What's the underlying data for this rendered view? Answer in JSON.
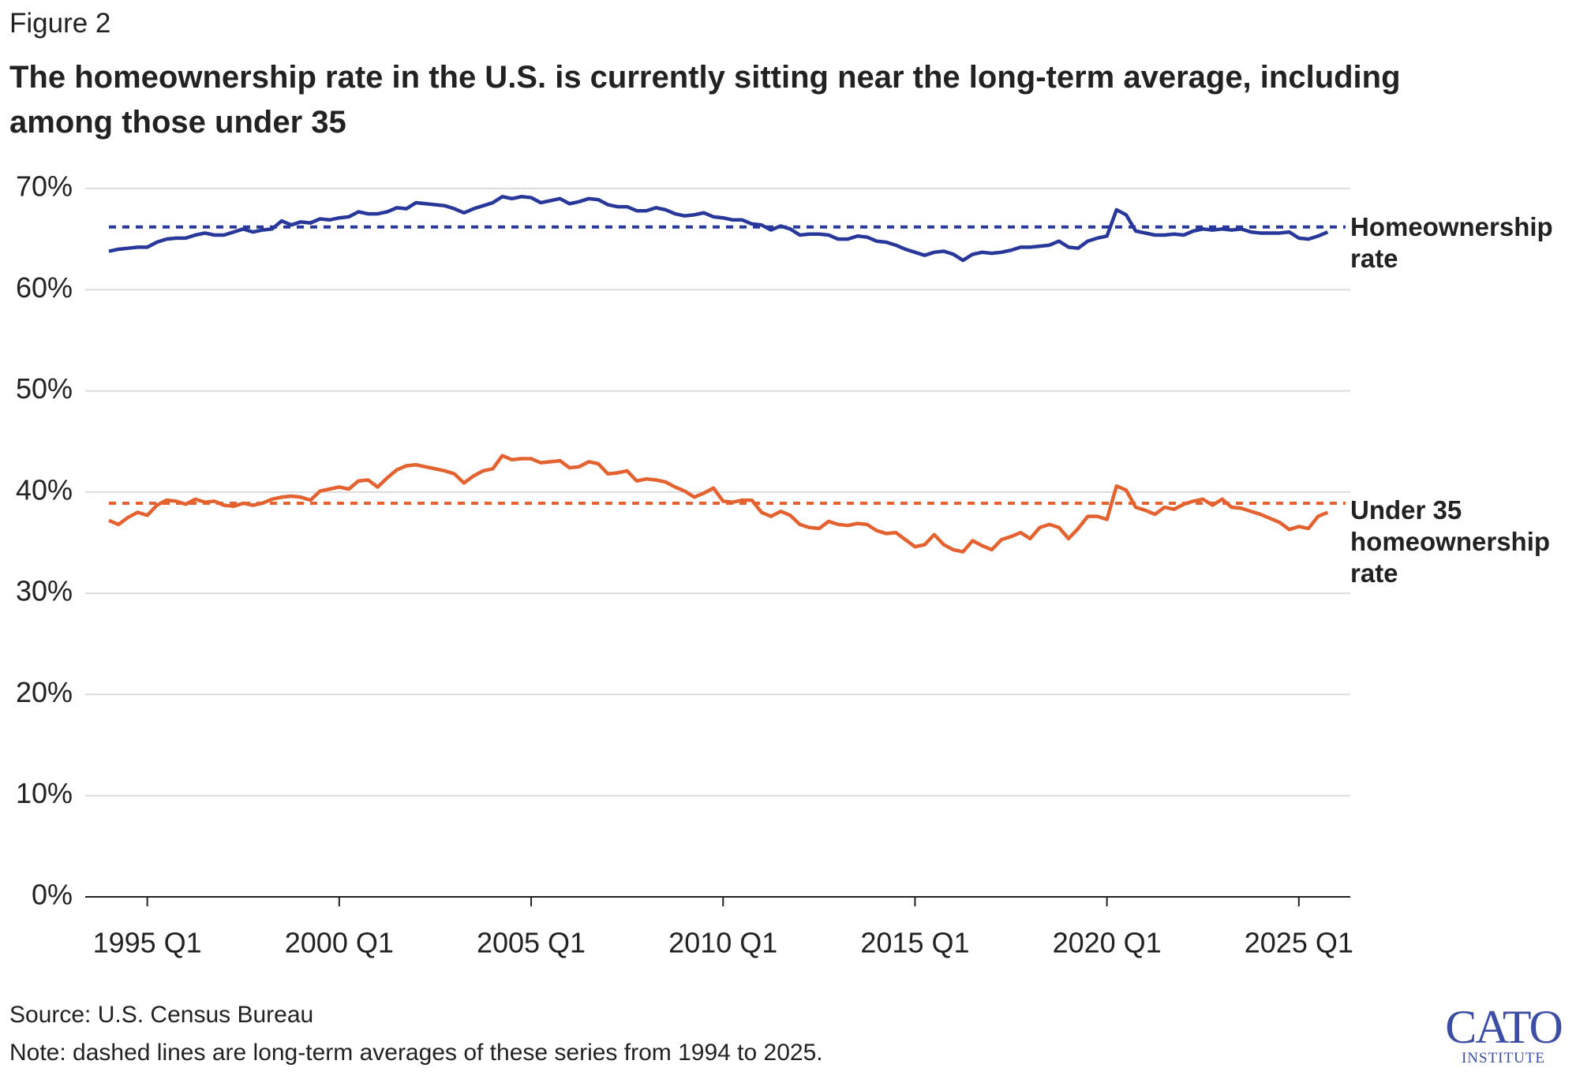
{
  "figure_label": "Figure 2",
  "chart_data": {
    "type": "line",
    "title": "The homeownership rate in the U.S. is currently sitting near the long-term average, including among those under 35",
    "categories": [
      null,
      null,
      null,
      null,
      "1995 Q1",
      null,
      null,
      null,
      null,
      null,
      null,
      null,
      null,
      null,
      null,
      null,
      null,
      null,
      null,
      null,
      null,
      null,
      null,
      null,
      "2000 Q1",
      null,
      null,
      null,
      null,
      null,
      null,
      null,
      null,
      null,
      null,
      null,
      null,
      null,
      null,
      null,
      null,
      null,
      null,
      null,
      "2005 Q1",
      null,
      null,
      null,
      null,
      null,
      null,
      null,
      null,
      null,
      null,
      null,
      null,
      null,
      null,
      null,
      null,
      null,
      null,
      null,
      "2010 Q1",
      null,
      null,
      null,
      null,
      null,
      null,
      null,
      null,
      null,
      null,
      null,
      null,
      null,
      null,
      null,
      null,
      null,
      null,
      null,
      "2015 Q1",
      null,
      null,
      null,
      null,
      null,
      null,
      null,
      null,
      null,
      null,
      null,
      null,
      null,
      null,
      null,
      null,
      null,
      null,
      null,
      "2020 Q1",
      null,
      null,
      null,
      null,
      null,
      null,
      null,
      null,
      null,
      null,
      null,
      null,
      null,
      null,
      null,
      null,
      null,
      null,
      null,
      "2025 Q1",
      null,
      null,
      null
    ],
    "series": [
      {
        "name": "Homeownership rate",
        "color": "#27379a",
        "average": 66.2,
        "values": [
          63.8,
          64.0,
          64.1,
          64.2,
          64.2,
          64.7,
          65.0,
          65.1,
          65.1,
          65.4,
          65.6,
          65.4,
          65.4,
          65.7,
          66.0,
          65.7,
          65.9,
          66.0,
          66.8,
          66.4,
          66.7,
          66.6,
          67.0,
          66.9,
          67.1,
          67.2,
          67.7,
          67.5,
          67.5,
          67.7,
          68.1,
          68.0,
          68.6,
          68.5,
          68.4,
          68.3,
          68.0,
          67.6,
          68.0,
          68.3,
          68.6,
          69.2,
          69.0,
          69.2,
          69.1,
          68.6,
          68.8,
          69.0,
          68.5,
          68.7,
          69.0,
          68.9,
          68.4,
          68.2,
          68.2,
          67.8,
          67.8,
          68.1,
          67.9,
          67.5,
          67.3,
          67.4,
          67.6,
          67.2,
          67.1,
          66.9,
          66.9,
          66.5,
          66.4,
          65.9,
          66.3,
          66.0,
          65.4,
          65.5,
          65.5,
          65.4,
          65.0,
          65.0,
          65.3,
          65.2,
          64.8,
          64.7,
          64.4,
          64.0,
          63.7,
          63.4,
          63.7,
          63.8,
          63.5,
          62.9,
          63.5,
          63.7,
          63.6,
          63.7,
          63.9,
          64.2,
          64.2,
          64.3,
          64.4,
          64.8,
          64.2,
          64.1,
          64.8,
          65.1,
          65.3,
          67.9,
          67.4,
          65.8,
          65.6,
          65.4,
          65.4,
          65.5,
          65.4,
          65.8,
          66.0,
          65.9,
          66.0,
          65.9,
          66.0,
          65.7,
          65.6,
          65.6,
          65.6,
          65.7,
          65.1,
          65.0,
          65.3,
          65.7
        ]
      },
      {
        "name": "Under 35 homeownership rate",
        "color": "#e4622f",
        "average": 38.9,
        "values": [
          37.2,
          36.8,
          37.5,
          38.0,
          37.7,
          38.7,
          39.2,
          39.1,
          38.8,
          39.3,
          39.0,
          39.1,
          38.7,
          38.6,
          38.9,
          38.7,
          38.9,
          39.3,
          39.5,
          39.6,
          39.5,
          39.2,
          40.1,
          40.3,
          40.5,
          40.3,
          41.1,
          41.2,
          40.5,
          41.4,
          42.2,
          42.6,
          42.7,
          42.5,
          42.3,
          42.1,
          41.8,
          40.9,
          41.6,
          42.1,
          42.3,
          43.6,
          43.2,
          43.3,
          43.3,
          42.9,
          43.0,
          43.1,
          42.4,
          42.5,
          43.0,
          42.8,
          41.8,
          41.9,
          42.1,
          41.1,
          41.3,
          41.2,
          41.0,
          40.5,
          40.1,
          39.5,
          39.9,
          40.4,
          39.1,
          39.0,
          39.2,
          39.2,
          38.0,
          37.6,
          38.1,
          37.7,
          36.8,
          36.5,
          36.4,
          37.1,
          36.8,
          36.7,
          36.9,
          36.8,
          36.2,
          35.9,
          36.0,
          35.3,
          34.6,
          34.8,
          35.8,
          34.8,
          34.3,
          34.1,
          35.2,
          34.7,
          34.3,
          35.3,
          35.6,
          36.0,
          35.4,
          36.5,
          36.8,
          36.5,
          35.4,
          36.4,
          37.6,
          37.6,
          37.3,
          40.6,
          40.2,
          38.5,
          38.2,
          37.8,
          38.5,
          38.3,
          38.8,
          39.1,
          39.3,
          38.7,
          39.3,
          38.5,
          38.4,
          38.1,
          37.8,
          37.4,
          37.0,
          36.3,
          36.6,
          36.4,
          37.6,
          38.0
        ]
      }
    ],
    "ylim": [
      0,
      70
    ],
    "yticks": [
      {
        "value": 0,
        "label": "0%"
      },
      {
        "value": 10,
        "label": "10%"
      },
      {
        "value": 20,
        "label": "20%"
      },
      {
        "value": 30,
        "label": "30%"
      },
      {
        "value": 40,
        "label": "40%"
      },
      {
        "value": 50,
        "label": "50%"
      },
      {
        "value": 60,
        "label": "60%"
      },
      {
        "value": 70,
        "label": "70%"
      }
    ],
    "grid": true,
    "source": "Source: U.S. Census Bureau",
    "note": "Note: dashed lines are long-term averages of these series from 1994 to 2025."
  },
  "logo": {
    "name": "CATO",
    "sub": "INSTITUTE"
  }
}
